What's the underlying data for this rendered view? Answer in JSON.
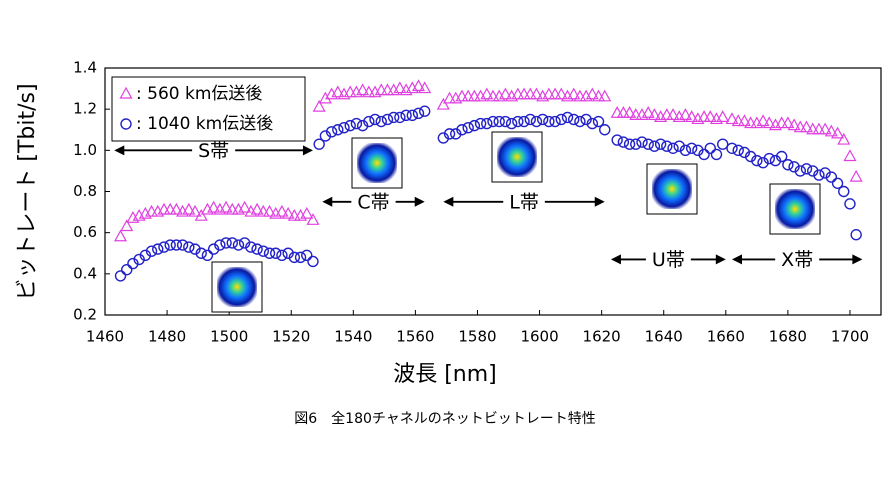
{
  "chart_data": {
    "type": "scatter",
    "xlabel": "波長 [nm]",
    "ylabel": "ビットレート [Tbit/s]",
    "caption": "図6　全180チャネルのネットビットレート特性",
    "xlim": [
      1460,
      1710
    ],
    "xticks": [
      1460,
      1480,
      1500,
      1520,
      1540,
      1560,
      1580,
      1600,
      1620,
      1640,
      1660,
      1680,
      1700
    ],
    "ylim": [
      0.2,
      1.4
    ],
    "yticks": [
      0.2,
      0.4,
      0.6,
      0.8,
      {
        "value": 1,
        "label": "1.0"
      },
      1.2,
      1.4
    ],
    "legend": "upper left",
    "annotations": [
      "S帯",
      "C帯",
      "L帯",
      "U帯",
      "X帯"
    ],
    "x": [
      1465,
      1467,
      1469,
      1471,
      1473,
      1475,
      1477,
      1479,
      1481,
      1483,
      1485,
      1487,
      1489,
      1491,
      1493,
      1495,
      1497,
      1499,
      1501,
      1503,
      1505,
      1507,
      1509,
      1511,
      1513,
      1515,
      1517,
      1519,
      1521,
      1523,
      1525,
      1527,
      1529,
      1531,
      1533,
      1535,
      1537,
      1539,
      1541,
      1543,
      1545,
      1547,
      1549,
      1551,
      1553,
      1555,
      1557,
      1559,
      1561,
      1563,
      1569,
      1571,
      1573,
      1575,
      1577,
      1579,
      1581,
      1583,
      1585,
      1587,
      1589,
      1591,
      1593,
      1595,
      1597,
      1599,
      1601,
      1603,
      1605,
      1607,
      1609,
      1611,
      1613,
      1615,
      1617,
      1619,
      1621,
      1625,
      1627,
      1629,
      1631,
      1633,
      1635,
      1637,
      1639,
      1641,
      1643,
      1645,
      1647,
      1649,
      1651,
      1653,
      1655,
      1657,
      1659,
      1662,
      1664,
      1666,
      1668,
      1670,
      1672,
      1674,
      1676,
      1678,
      1680,
      1682,
      1684,
      1686,
      1688,
      1690,
      1692,
      1694,
      1696,
      1698,
      1700,
      1702
    ],
    "series": [
      {
        "name": ": 560 km伝送後",
        "color": "#e040e0",
        "marker": "triangle",
        "values": [
          0.58,
          0.63,
          0.67,
          0.68,
          0.69,
          0.7,
          0.7,
          0.71,
          0.71,
          0.71,
          0.7,
          0.71,
          0.7,
          0.68,
          0.71,
          0.72,
          0.71,
          0.72,
          0.71,
          0.71,
          0.72,
          0.7,
          0.71,
          0.7,
          0.7,
          0.69,
          0.7,
          0.69,
          0.68,
          0.68,
          0.69,
          0.66,
          1.21,
          1.25,
          1.27,
          1.28,
          1.27,
          1.28,
          1.28,
          1.29,
          1.28,
          1.28,
          1.29,
          1.29,
          1.29,
          1.3,
          1.29,
          1.3,
          1.31,
          1.3,
          1.22,
          1.25,
          1.25,
          1.26,
          1.26,
          1.26,
          1.26,
          1.27,
          1.26,
          1.26,
          1.27,
          1.26,
          1.27,
          1.27,
          1.27,
          1.27,
          1.26,
          1.27,
          1.27,
          1.27,
          1.26,
          1.27,
          1.26,
          1.26,
          1.27,
          1.26,
          1.26,
          1.18,
          1.18,
          1.18,
          1.17,
          1.17,
          1.18,
          1.17,
          1.16,
          1.17,
          1.17,
          1.16,
          1.17,
          1.16,
          1.15,
          1.16,
          1.16,
          1.15,
          1.16,
          1.15,
          1.14,
          1.14,
          1.13,
          1.13,
          1.14,
          1.13,
          1.12,
          1.13,
          1.13,
          1.12,
          1.11,
          1.11,
          1.1,
          1.1,
          1.1,
          1.09,
          1.08,
          1.05,
          0.97,
          0.87
        ]
      },
      {
        "name": ": 1040 km伝送後",
        "color": "#2222c8",
        "marker": "circle",
        "values": [
          0.39,
          0.42,
          0.45,
          0.47,
          0.49,
          0.51,
          0.52,
          0.53,
          0.54,
          0.54,
          0.54,
          0.53,
          0.52,
          0.5,
          0.49,
          0.52,
          0.54,
          0.55,
          0.55,
          0.54,
          0.55,
          0.53,
          0.52,
          0.51,
          0.5,
          0.5,
          0.49,
          0.5,
          0.48,
          0.48,
          0.49,
          0.46,
          1.03,
          1.07,
          1.09,
          1.1,
          1.11,
          1.12,
          1.13,
          1.12,
          1.14,
          1.15,
          1.14,
          1.15,
          1.16,
          1.16,
          1.17,
          1.17,
          1.18,
          1.19,
          1.06,
          1.08,
          1.08,
          1.1,
          1.11,
          1.12,
          1.13,
          1.13,
          1.14,
          1.14,
          1.14,
          1.13,
          1.14,
          1.14,
          1.15,
          1.14,
          1.15,
          1.14,
          1.14,
          1.15,
          1.16,
          1.15,
          1.14,
          1.15,
          1.13,
          1.14,
          1.1,
          1.05,
          1.04,
          1.03,
          1.03,
          1.04,
          1.03,
          1.02,
          1.03,
          1.02,
          1.01,
          1.02,
          1.0,
          1.01,
          1.0,
          0.98,
          1.01,
          0.98,
          1.03,
          1.01,
          1.0,
          0.99,
          0.97,
          0.95,
          0.94,
          0.96,
          0.95,
          0.97,
          0.93,
          0.92,
          0.9,
          0.91,
          0.9,
          0.88,
          0.89,
          0.87,
          0.84,
          0.8,
          0.74,
          0.59
        ]
      }
    ]
  }
}
